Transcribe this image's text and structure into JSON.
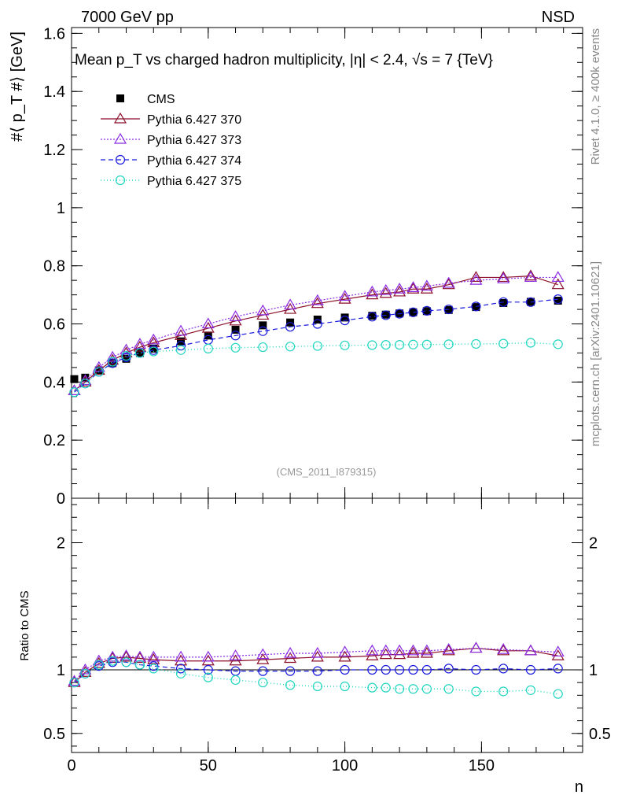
{
  "header": {
    "energy": "7000 GeV pp",
    "process": "NSD",
    "title": "Mean p_T vs charged hadron multiplicity, |η| < 2.4, √s = 7 {TeV}",
    "analysis_id": "(CMS_2011_I879315)",
    "side_rivet": "Rivet 4.1.0, ≥ 400k events",
    "side_mcplots": "mcplots.cern.ch [arXiv:2401.10621]"
  },
  "chart_data": [
    {
      "type": "scatter",
      "panel": "main",
      "ylabel": "#⟨ p_T #⟩ [GeV]",
      "xlim": [
        0,
        187
      ],
      "ylim": [
        0,
        1.62
      ],
      "yticks": [
        0,
        0.2,
        0.4,
        0.6,
        0.8,
        1,
        1.2,
        1.4,
        1.6
      ],
      "ytick_labels": [
        "0",
        "0.2",
        "0.4",
        "0.6",
        "0.8",
        "1",
        "1.2",
        "1.4",
        "1.6"
      ],
      "legend_position": "top-left",
      "series": [
        {
          "name": "CMS",
          "color": "#000000",
          "marker": "square-filled",
          "x": [
            1,
            5,
            10,
            15,
            20,
            25,
            30,
            40,
            50,
            60,
            70,
            80,
            90,
            100,
            110,
            115,
            120,
            125,
            130,
            138,
            148,
            158,
            168,
            178
          ],
          "y": [
            0.41,
            0.415,
            0.44,
            0.465,
            0.48,
            0.5,
            0.515,
            0.54,
            0.56,
            0.58,
            0.595,
            0.605,
            0.615,
            0.622,
            0.628,
            0.632,
            0.636,
            0.64,
            0.644,
            0.648,
            0.658,
            0.672,
            0.676,
            0.68
          ]
        },
        {
          "name": "Pythia 6.427 370",
          "color": "#8b0f2a",
          "marker": "triangle-open",
          "x": [
            1,
            5,
            10,
            15,
            20,
            25,
            30,
            40,
            50,
            60,
            70,
            80,
            90,
            100,
            110,
            115,
            120,
            125,
            130,
            138,
            148,
            158,
            168,
            178
          ],
          "y": [
            0.37,
            0.4,
            0.44,
            0.475,
            0.5,
            0.52,
            0.535,
            0.56,
            0.585,
            0.61,
            0.63,
            0.65,
            0.67,
            0.685,
            0.7,
            0.705,
            0.71,
            0.72,
            0.72,
            0.735,
            0.76,
            0.76,
            0.765,
            0.735
          ]
        },
        {
          "name": "Pythia 6.427 373",
          "color": "#8a2be2",
          "marker": "triangle-open",
          "x": [
            1,
            5,
            10,
            15,
            20,
            25,
            30,
            40,
            50,
            60,
            70,
            80,
            90,
            100,
            110,
            115,
            120,
            125,
            130,
            138,
            148,
            158,
            168,
            178
          ],
          "y": [
            0.37,
            0.405,
            0.45,
            0.485,
            0.51,
            0.53,
            0.545,
            0.575,
            0.6,
            0.625,
            0.645,
            0.665,
            0.68,
            0.695,
            0.71,
            0.715,
            0.72,
            0.725,
            0.73,
            0.74,
            0.75,
            0.755,
            0.76,
            0.76
          ]
        },
        {
          "name": "Pythia 6.427 374",
          "color": "#1a1adc",
          "marker": "circle-open",
          "x": [
            1,
            5,
            10,
            15,
            20,
            25,
            30,
            40,
            50,
            60,
            70,
            80,
            90,
            100,
            110,
            115,
            120,
            125,
            130,
            138,
            148,
            158,
            168,
            178
          ],
          "y": [
            0.365,
            0.395,
            0.435,
            0.465,
            0.485,
            0.5,
            0.51,
            0.525,
            0.545,
            0.56,
            0.575,
            0.59,
            0.6,
            0.612,
            0.625,
            0.63,
            0.635,
            0.64,
            0.645,
            0.65,
            0.66,
            0.675,
            0.675,
            0.685
          ]
        },
        {
          "name": "Pythia 6.427 375",
          "color": "#20d6c0",
          "marker": "circle-open",
          "x": [
            1,
            5,
            10,
            15,
            20,
            25,
            30,
            40,
            50,
            60,
            70,
            80,
            90,
            100,
            110,
            115,
            120,
            125,
            130,
            138,
            148,
            158,
            168,
            178
          ],
          "y": [
            0.365,
            0.395,
            0.435,
            0.47,
            0.49,
            0.5,
            0.505,
            0.51,
            0.515,
            0.518,
            0.52,
            0.522,
            0.524,
            0.526,
            0.527,
            0.528,
            0.528,
            0.529,
            0.529,
            0.53,
            0.531,
            0.532,
            0.535,
            0.53
          ]
        }
      ]
    },
    {
      "type": "scatter",
      "panel": "ratio",
      "ylabel": "Ratio to CMS",
      "xlabel": "n",
      "xlim": [
        0,
        187
      ],
      "ylim": [
        0.35,
        2.35
      ],
      "yticks": [
        0.5,
        1,
        2
      ],
      "ytick_labels": [
        "0.5",
        "1",
        "2"
      ],
      "xticks": [
        0,
        50,
        100,
        150
      ],
      "xtick_labels": [
        "0",
        "50",
        "100",
        "150"
      ],
      "series": [
        {
          "name": "Pythia 6.427 370",
          "color": "#8b0f2a",
          "marker": "triangle-open",
          "x": [
            1,
            5,
            10,
            15,
            20,
            25,
            30,
            40,
            50,
            60,
            70,
            80,
            90,
            100,
            110,
            115,
            120,
            125,
            130,
            138,
            148,
            158,
            168,
            178
          ],
          "y": [
            0.9,
            0.98,
            1.05,
            1.09,
            1.1,
            1.09,
            1.08,
            1.07,
            1.07,
            1.07,
            1.08,
            1.09,
            1.1,
            1.1,
            1.11,
            1.12,
            1.12,
            1.13,
            1.13,
            1.15,
            1.17,
            1.15,
            1.15,
            1.11
          ]
        },
        {
          "name": "Pythia 6.427 373",
          "color": "#8a2be2",
          "marker": "triangle-open",
          "x": [
            1,
            5,
            10,
            15,
            20,
            25,
            30,
            40,
            50,
            60,
            70,
            80,
            90,
            100,
            110,
            115,
            120,
            125,
            130,
            138,
            148,
            158,
            168,
            178
          ],
          "y": [
            0.91,
            1.0,
            1.07,
            1.1,
            1.11,
            1.1,
            1.1,
            1.1,
            1.1,
            1.11,
            1.12,
            1.13,
            1.13,
            1.14,
            1.15,
            1.15,
            1.15,
            1.15,
            1.15,
            1.16,
            1.17,
            1.16,
            1.15,
            1.14
          ]
        },
        {
          "name": "Pythia 6.427 374",
          "color": "#1a1adc",
          "marker": "circle-open",
          "x": [
            1,
            5,
            10,
            15,
            20,
            25,
            30,
            40,
            50,
            60,
            70,
            80,
            90,
            100,
            110,
            115,
            120,
            125,
            130,
            138,
            148,
            158,
            168,
            178
          ],
          "y": [
            0.9,
            0.97,
            1.03,
            1.06,
            1.06,
            1.04,
            1.03,
            1.01,
            1.0,
            0.99,
            0.99,
            0.99,
            0.99,
            1.0,
            1.0,
            1.0,
            1.0,
            1.0,
            1.0,
            1.01,
            1.0,
            1.01,
            1.0,
            1.01
          ]
        },
        {
          "name": "Pythia 6.427 375",
          "color": "#20d6c0",
          "marker": "circle-open",
          "x": [
            1,
            5,
            10,
            15,
            20,
            25,
            30,
            40,
            50,
            60,
            70,
            80,
            90,
            100,
            110,
            115,
            120,
            125,
            130,
            138,
            148,
            158,
            168,
            178
          ],
          "y": [
            0.9,
            0.97,
            1.04,
            1.07,
            1.06,
            1.04,
            1.01,
            0.97,
            0.94,
            0.92,
            0.9,
            0.88,
            0.87,
            0.87,
            0.86,
            0.86,
            0.85,
            0.85,
            0.85,
            0.85,
            0.83,
            0.83,
            0.84,
            0.81
          ]
        }
      ]
    }
  ],
  "legend": {
    "items": [
      {
        "label": "CMS"
      },
      {
        "label": "Pythia 6.427 370"
      },
      {
        "label": "Pythia 6.427 373"
      },
      {
        "label": "Pythia 6.427 374"
      },
      {
        "label": "Pythia 6.427 375"
      }
    ]
  }
}
